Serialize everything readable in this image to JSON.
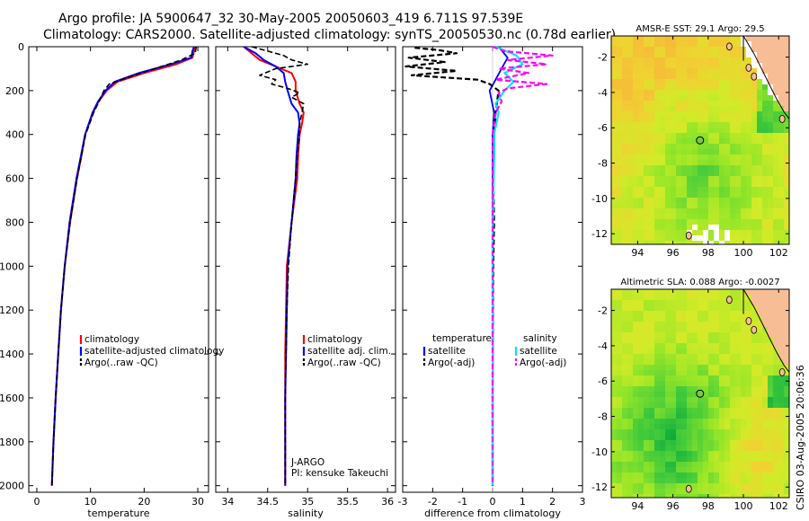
{
  "title_line1": "Argo profile: JA 5900647_32 30-May-2005 20050603_419 6.711S 97.539E",
  "title_line2": "Climatology: CARS2000. Satellite-adjusted climatology: synTS_20050530.nc (0.78d earlier)",
  "footer_stamp": "CSIRO 03-Aug-2005 20:06:36",
  "colors": {
    "clim": "#ff0000",
    "satadj": "#0000ff",
    "argo": "#000000",
    "sat_sal": "#00e5ff",
    "argo_sal": "#ff00ff"
  },
  "chart_data": [
    {
      "id": "temperature",
      "type": "line",
      "xlabel": "temperature",
      "xlim": [
        -1.5,
        32
      ],
      "xticks": [
        0,
        10,
        20,
        30
      ],
      "ylim": [
        2030,
        0
      ],
      "yticks": [
        0,
        200,
        400,
        600,
        800,
        1000,
        1200,
        1400,
        1600,
        1800,
        2000
      ],
      "legend": [
        "climatology",
        "satellite-adjusted climatology",
        "Argo(..raw -QC)"
      ],
      "series": [
        {
          "name": "climatology",
          "depth": [
            0,
            20,
            50,
            80,
            120,
            160,
            200,
            250,
            300,
            400,
            500,
            600,
            800,
            1000,
            1200,
            1400,
            1600,
            1800,
            2000
          ],
          "values": [
            29.5,
            29.3,
            29,
            26,
            20,
            15,
            13,
            11.5,
            10.5,
            9,
            8.3,
            7.5,
            6.2,
            5.2,
            4.5,
            4,
            3.5,
            3.1,
            2.8
          ]
        },
        {
          "name": "satellite-adjusted climatology",
          "depth": [
            0,
            20,
            50,
            80,
            120,
            160,
            200,
            250,
            300,
            400,
            500,
            600,
            800,
            1000,
            1200,
            1400,
            1600,
            1800,
            2000
          ],
          "values": [
            29.3,
            29,
            28.8,
            25,
            19,
            14.5,
            12.8,
            11.4,
            10.4,
            9,
            8.2,
            7.4,
            6.1,
            5.2,
            4.5,
            4,
            3.5,
            3.1,
            2.8
          ]
        },
        {
          "name": "Argo(..raw -QC)",
          "depth": [
            0,
            30,
            60,
            100,
            140,
            170,
            200,
            240,
            300,
            400,
            500,
            600,
            800,
            1000,
            1200,
            1400,
            1600,
            1800,
            2000
          ],
          "values": [
            29.7,
            29.5,
            27,
            22,
            17,
            13.5,
            12.5,
            11.8,
            10.6,
            9.1,
            8.3,
            7.5,
            6.2,
            5.2,
            4.5,
            4,
            3.5,
            3.1,
            2.8
          ]
        }
      ]
    },
    {
      "id": "salinity",
      "type": "line",
      "xlabel": "salinity",
      "xlim": [
        33.85,
        36.1
      ],
      "xticks": [
        34,
        34.5,
        35,
        35.5,
        36
      ],
      "ylim": [
        2030,
        0
      ],
      "legend": [
        "climatology",
        "satellite adj. clim.",
        "Argo(..raw -QC)"
      ],
      "annotation": [
        "J-ARGO",
        "PI: kensuke Takeuchi"
      ],
      "series": [
        {
          "name": "climatology",
          "depth": [
            0,
            30,
            60,
            90,
            120,
            160,
            200,
            260,
            300,
            350,
            400,
            500,
            600,
            800,
            1000,
            1200,
            1400,
            1600,
            1800,
            2000
          ],
          "values": [
            34.2,
            34.3,
            34.4,
            34.6,
            34.8,
            34.85,
            34.85,
            34.9,
            34.95,
            34.93,
            34.9,
            34.88,
            34.87,
            34.8,
            34.74,
            34.73,
            34.72,
            34.72,
            34.72,
            34.72
          ]
        },
        {
          "name": "satellite adj. clim.",
          "depth": [
            0,
            30,
            60,
            90,
            120,
            160,
            200,
            260,
            300,
            350,
            400,
            500,
            600,
            800,
            1000,
            1200,
            1400,
            1600,
            1800,
            2000
          ],
          "values": [
            34.2,
            34.35,
            34.45,
            34.6,
            34.7,
            34.72,
            34.75,
            34.8,
            34.88,
            34.9,
            34.88,
            34.86,
            34.85,
            34.8,
            34.75,
            34.74,
            34.73,
            34.72,
            34.72,
            34.72
          ]
        },
        {
          "name": "Argo(..raw -QC)",
          "depth": [
            0,
            20,
            40,
            60,
            80,
            100,
            130,
            150,
            170,
            190,
            210,
            230,
            260,
            300,
            350,
            400,
            500,
            600,
            800,
            1000,
            1200,
            1400,
            1600,
            1800,
            2000
          ],
          "values": [
            34.3,
            34.5,
            34.7,
            34.8,
            35.0,
            34.6,
            34.4,
            34.6,
            34.55,
            34.75,
            34.9,
            34.8,
            34.95,
            34.93,
            34.9,
            34.9,
            34.87,
            34.85,
            34.8,
            34.76,
            34.74,
            34.73,
            34.72,
            34.72,
            34.72
          ]
        }
      ]
    },
    {
      "id": "difference",
      "type": "line",
      "xlabel": "difference from climatology",
      "xlim": [
        -3,
        3
      ],
      "xticks": [
        -3,
        -2,
        -1,
        0,
        1,
        2,
        3
      ],
      "ylim": [
        2030,
        0
      ],
      "legend_left_title": "temperature",
      "legend_right_title": "salinity",
      "legend": [
        "satellite",
        "Argo(-adj)",
        "satellite",
        "Argo(-adj)"
      ],
      "series": [
        {
          "name": "temperature satellite",
          "depth": [
            0,
            50,
            100,
            150,
            200,
            300,
            400,
            600,
            800,
            1000,
            1400,
            2000
          ],
          "values": [
            0.2,
            0.5,
            0.3,
            0.1,
            -0.1,
            0.05,
            0,
            0,
            0,
            0,
            0,
            0
          ]
        },
        {
          "name": "temperature Argo(-adj)",
          "depth": [
            5,
            15,
            30,
            50,
            70,
            90,
            110,
            130,
            150,
            170,
            200,
            300,
            400,
            500,
            600,
            800,
            1000,
            1200,
            1600,
            2000
          ],
          "values": [
            -2.6,
            -1.8,
            -1.2,
            -2.8,
            -1.6,
            -2.9,
            -1.2,
            -2.7,
            -0.5,
            -0.1,
            0.2,
            0.1,
            0.05,
            0.05,
            0.02,
            0.05,
            0.02,
            0.01,
            0,
            0
          ]
        },
        {
          "name": "salinity satellite",
          "depth": [
            0,
            40,
            80,
            120,
            160,
            200,
            260,
            300,
            400,
            500,
            700,
            900,
            1200,
            1600,
            2000
          ],
          "values": [
            0.1,
            0.8,
            1,
            0.4,
            0.7,
            0.4,
            0.1,
            0.2,
            0.05,
            0.05,
            0.02,
            0,
            0,
            0,
            0
          ]
        },
        {
          "name": "salinity Argo(-adj)",
          "depth": [
            0,
            20,
            40,
            60,
            80,
            100,
            120,
            150,
            170,
            190,
            210,
            250,
            300,
            400,
            600,
            800,
            1000,
            1200,
            1600,
            2000
          ],
          "values": [
            0,
            0.4,
            2,
            0.5,
            1.8,
            0.2,
            1.2,
            0.1,
            1.8,
            0.5,
            0.2,
            0.3,
            0.1,
            0,
            0,
            0,
            0,
            0,
            0,
            0
          ]
        }
      ]
    },
    {
      "id": "map_sst",
      "type": "heatmap",
      "title": "AMSR-E SST: 29.1 Argo: 29.5",
      "xlim": [
        92.5,
        102.6
      ],
      "ylim": [
        -12.6,
        -0.8
      ],
      "xticks": [
        94,
        96,
        98,
        100,
        102
      ],
      "yticks": [
        -2,
        -4,
        -6,
        -8,
        -10,
        -12
      ],
      "float_position": {
        "lon": 97.539,
        "lat": -6.711
      }
    },
    {
      "id": "map_sla",
      "type": "heatmap",
      "title": "Altimetric SLA: 0.088 Argo: -0.0027",
      "xlim": [
        92.5,
        102.6
      ],
      "ylim": [
        -12.6,
        -0.8
      ],
      "xticks": [
        94,
        96,
        98,
        100,
        102
      ],
      "yticks": [
        -2,
        -4,
        -6,
        -8,
        -10,
        -12
      ],
      "float_position": {
        "lon": 97.539,
        "lat": -6.711
      }
    }
  ]
}
